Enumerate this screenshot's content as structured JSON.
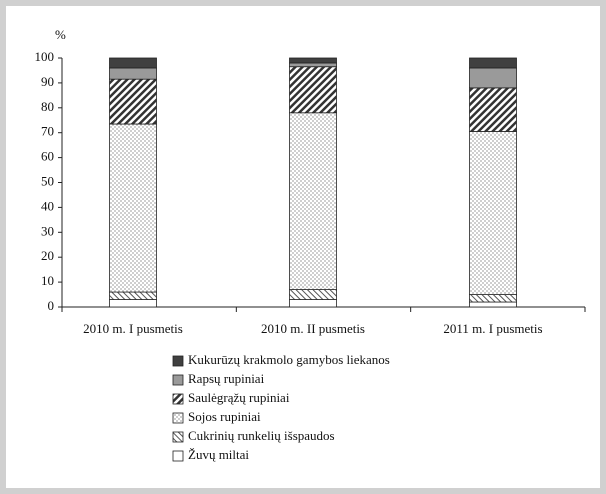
{
  "chart_data": {
    "type": "stacked_bar",
    "y_label": "%",
    "categories": [
      "2010 m. I pusmetis",
      "2010 m. II pusmetis",
      "2011 m. I pusmetis"
    ],
    "series": [
      {
        "name": "Žuvų miltai",
        "color": "#ffffff",
        "pattern": "none",
        "values": [
          3,
          3,
          2
        ]
      },
      {
        "name": "Cukrinių runkelių išspaudos",
        "color": "#ffffff",
        "pattern": "cross-hatch",
        "values": [
          3,
          4,
          3
        ]
      },
      {
        "name": "Sojos rupiniai",
        "color": "#ffffff",
        "pattern": "dots",
        "values": [
          67.5,
          71,
          65.5
        ]
      },
      {
        "name": "Saulėgrąžų rupiniai",
        "color": "#ffffff",
        "pattern": "diagonal",
        "values": [
          18,
          18.5,
          17.5
        ]
      },
      {
        "name": "Rapsų rupiniai",
        "color": "#9a9a9a",
        "pattern": "none",
        "values": [
          4.5,
          1.5,
          8
        ]
      },
      {
        "name": "Kukurūzų krakmolo gamybos liekanos",
        "color": "#404040",
        "pattern": "none",
        "values": [
          4,
          2,
          4
        ]
      }
    ],
    "ylim": [
      0,
      100
    ],
    "yticks": [
      0,
      10,
      20,
      30,
      40,
      50,
      60,
      70,
      80,
      90,
      100
    ]
  }
}
